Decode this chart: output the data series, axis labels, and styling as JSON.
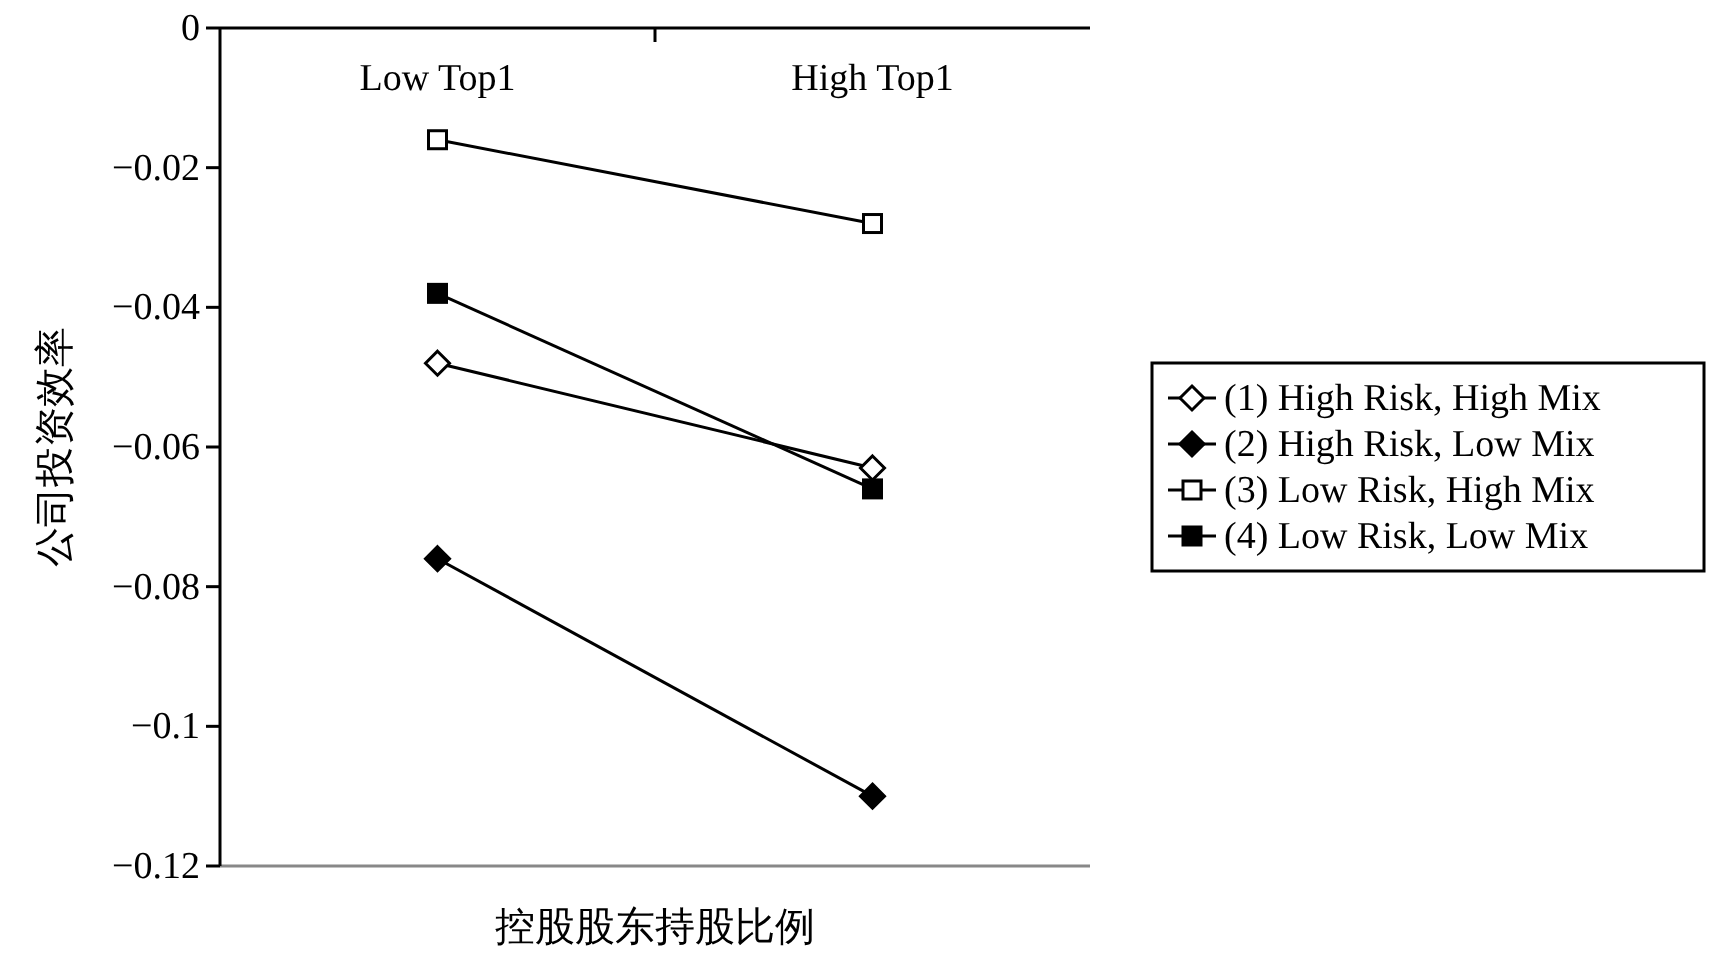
{
  "chart_data": {
    "type": "line",
    "xlabel": "控股股东持股比例",
    "ylabel": "公司投资效率",
    "categories": [
      "Low Top1",
      "High Top1"
    ],
    "series": [
      {
        "name": "(1) High Risk, High Mix",
        "color": "#ffffff",
        "marker": "diamond",
        "values": [
          -0.048,
          -0.063
        ]
      },
      {
        "name": "(2) High Risk, Low Mix",
        "color": "#000000",
        "marker": "diamond",
        "values": [
          -0.076,
          -0.11
        ]
      },
      {
        "name": "(3) Low Risk, High Mix",
        "color": "#ffffff",
        "marker": "square",
        "values": [
          -0.016,
          -0.028
        ]
      },
      {
        "name": "(4) Low Risk, Low Mix",
        "color": "#000000",
        "marker": "square",
        "values": [
          -0.038,
          -0.066
        ]
      }
    ],
    "ylim": [
      -0.12,
      0
    ],
    "yticks": [
      0,
      {
        "value": -0.02,
        "label": "−0.02"
      },
      {
        "value": -0.04,
        "label": "−0.04"
      },
      {
        "value": -0.06,
        "label": "−0.06"
      },
      {
        "value": -0.08,
        "label": "−0.08"
      },
      {
        "value": -0.1,
        "label": "−0.1"
      },
      {
        "value": -0.12,
        "label": "−0.12"
      }
    ],
    "grid": false,
    "legend": "right"
  }
}
